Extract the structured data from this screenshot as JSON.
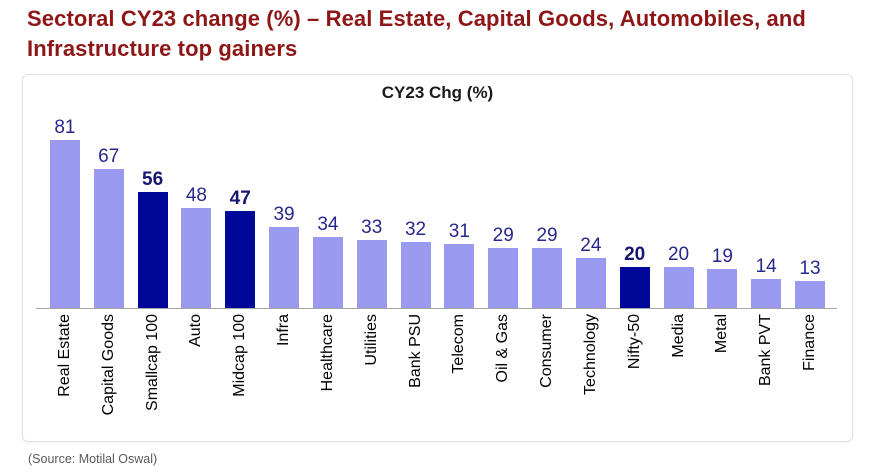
{
  "header": {
    "title_line1": "Sectoral CY23 change (%) – Real Estate, Capital Goods, Automobiles, and",
    "title_line2": "Infrastructure top gainers",
    "title_color": "#8e1616"
  },
  "chart_data": {
    "type": "bar",
    "title": "CY23 Chg (%)",
    "categories": [
      "Real Estate",
      "Capital Goods",
      "Smallcap 100",
      "Auto",
      "Midcap 100",
      "Infra",
      "Healthcare",
      "Utilities",
      "Bank PSU",
      "Telecom",
      "Oil & Gas",
      "Consumer",
      "Technology",
      "Nifty-50",
      "Media",
      "Metal",
      "Bank PVT",
      "Finance"
    ],
    "values": [
      81,
      67,
      56,
      48,
      47,
      39,
      34,
      33,
      32,
      31,
      29,
      29,
      24,
      20,
      20,
      19,
      14,
      13
    ],
    "highlight_indices": [
      2,
      4,
      13
    ],
    "colors": {
      "bar": "#9999f0",
      "highlight_bar": "#000899",
      "value_label": "#28288c",
      "highlight_value_label": "#17176f",
      "axis_line": "#a6a6a6"
    },
    "xlabel": "",
    "ylabel": "",
    "ylim": [
      0,
      85
    ],
    "grid": false,
    "legend": false,
    "data_labels": true
  },
  "footer": {
    "source": "(Source: Motilal Oswal)"
  }
}
